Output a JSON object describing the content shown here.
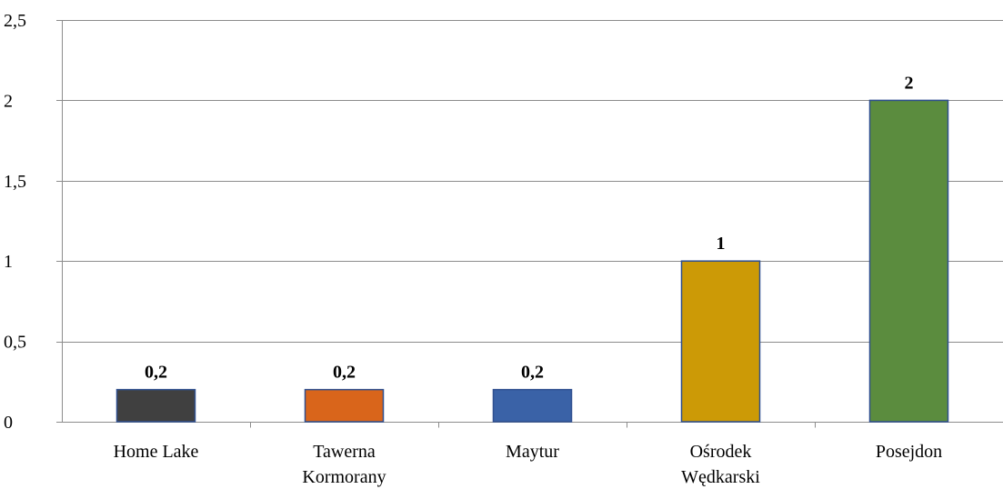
{
  "chart_data": {
    "type": "bar",
    "categories": [
      [
        "Home Lake"
      ],
      [
        "Tawerna",
        "Kormorany"
      ],
      [
        "Maytur"
      ],
      [
        "Ośrodek",
        "Wędkarski"
      ],
      [
        "Posejdon"
      ]
    ],
    "values": [
      0.2,
      0.2,
      0.2,
      1,
      2
    ],
    "data_labels": [
      "0,2",
      "0,2",
      "0,2",
      "1",
      "2"
    ],
    "bar_colors": [
      "#404040",
      "#d9651b",
      "#3a62a7",
      "#cc9a06",
      "#5b8c3e"
    ],
    "bar_border_color": "#2f4f8f",
    "ylim": [
      0,
      2.5
    ],
    "yticks": [
      0,
      0.5,
      1,
      1.5,
      2,
      2.5
    ],
    "ytick_labels": [
      "0",
      "0,5",
      "1",
      "1,5",
      "2",
      "2,5"
    ],
    "gridlines": true,
    "grid_color": "#8c8c8c",
    "axis_color": "#8c8c8c",
    "title": "",
    "xlabel": "",
    "ylabel": ""
  }
}
